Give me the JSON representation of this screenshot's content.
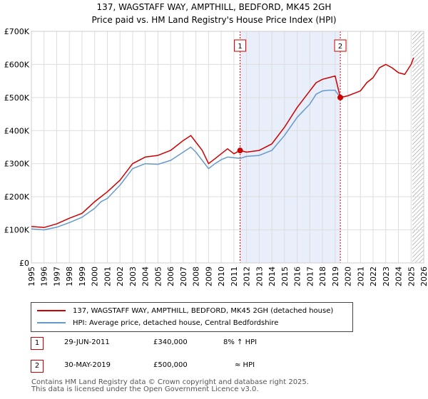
{
  "title_line1": "137, WAGSTAFF WAY, AMPTHILL, BEDFORD, MK45 2GH",
  "title_line2": "Price paid vs. HM Land Registry's House Price Index (HPI)",
  "colors": {
    "property": "#cc0000",
    "hpi": "#6699cc",
    "shade": "#e8eefa",
    "grid": "#dddddd"
  },
  "chart_data": {
    "type": "line",
    "title": "137, WAGSTAFF WAY, AMPTHILL, BEDFORD, MK45 2GH",
    "subtitle": "Price paid vs. HM Land Registry's House Price Index (HPI)",
    "xlabel": "",
    "ylabel": "",
    "xlim": [
      1995,
      2026
    ],
    "ylim": [
      0,
      700000
    ],
    "y_ticks": [
      0,
      100000,
      200000,
      300000,
      400000,
      500000,
      600000,
      700000
    ],
    "y_tick_labels": [
      "£0",
      "£100K",
      "£200K",
      "£300K",
      "£400K",
      "£500K",
      "£600K",
      "£700K"
    ],
    "x_ticks": [
      1995,
      1996,
      1997,
      1998,
      1999,
      2000,
      2001,
      2002,
      2003,
      2004,
      2005,
      2006,
      2007,
      2008,
      2009,
      2010,
      2011,
      2012,
      2013,
      2014,
      2015,
      2016,
      2017,
      2018,
      2019,
      2020,
      2021,
      2022,
      2023,
      2024,
      2025,
      2026
    ],
    "grid": true,
    "shaded_range": [
      2011.49,
      2019.41
    ],
    "hatched_from": 2025.1,
    "series": [
      {
        "name": "137, WAGSTAFF WAY, AMPTHILL, BEDFORD, MK45 2GH (detached house)",
        "x": [
          1995,
          1996,
          1997,
          1998,
          1999,
          2000,
          2000.5,
          2001,
          2002,
          2003,
          2004,
          2005,
          2006,
          2007,
          2007.6,
          2008,
          2008.5,
          2009,
          2009.5,
          2010,
          2010.5,
          2011,
          2011.49,
          2012,
          2013,
          2014,
          2015,
          2016,
          2017,
          2017.5,
          2018,
          2018.5,
          2019,
          2019.41,
          2020,
          2021,
          2021.5,
          2022,
          2022.5,
          2023,
          2023.5,
          2024,
          2024.5,
          2025,
          2025.2
        ],
        "values": [
          110000,
          107000,
          118000,
          135000,
          150000,
          185000,
          200000,
          215000,
          250000,
          300000,
          320000,
          325000,
          340000,
          370000,
          385000,
          365000,
          340000,
          300000,
          315000,
          330000,
          345000,
          330000,
          340000,
          335000,
          340000,
          360000,
          410000,
          470000,
          520000,
          545000,
          555000,
          560000,
          565000,
          500000,
          505000,
          520000,
          545000,
          560000,
          590000,
          600000,
          590000,
          575000,
          570000,
          600000,
          620000
        ]
      },
      {
        "name": "HPI: Average price, detached house, Central Bedfordshire",
        "x": [
          1995,
          1996,
          1997,
          1998,
          1999,
          2000,
          2000.5,
          2001,
          2002,
          2003,
          2004,
          2005,
          2006,
          2007,
          2007.6,
          2008,
          2008.5,
          2009,
          2009.5,
          2010,
          2010.5,
          2011,
          2011.49,
          2012,
          2013,
          2014,
          2015,
          2016,
          2017,
          2017.5,
          2018,
          2018.5,
          2019,
          2019.41
        ],
        "values": [
          103000,
          100000,
          108000,
          122000,
          138000,
          165000,
          185000,
          195000,
          235000,
          285000,
          300000,
          298000,
          310000,
          335000,
          350000,
          335000,
          310000,
          285000,
          300000,
          312000,
          320000,
          318000,
          316000,
          322000,
          325000,
          340000,
          385000,
          440000,
          480000,
          510000,
          520000,
          522000,
          522000,
          500000
        ]
      }
    ],
    "sales": [
      {
        "label": "1",
        "year": 2011.49,
        "price": 340000
      },
      {
        "label": "2",
        "year": 2019.41,
        "price": 500000
      }
    ]
  },
  "legend": {
    "property": "137, WAGSTAFF WAY, AMPTHILL, BEDFORD, MK45 2GH (detached house)",
    "hpi": "HPI: Average price, detached house, Central Bedfordshire"
  },
  "sales_table": [
    {
      "badge": "1",
      "date": "29-JUN-2011",
      "price": "£340,000",
      "hpi": "8% ↑ HPI"
    },
    {
      "badge": "2",
      "date": "30-MAY-2019",
      "price": "£500,000",
      "hpi": "≈ HPI"
    }
  ],
  "footer_line1": "Contains HM Land Registry data © Crown copyright and database right 2025.",
  "footer_line2": "This data is licensed under the Open Government Licence v3.0."
}
